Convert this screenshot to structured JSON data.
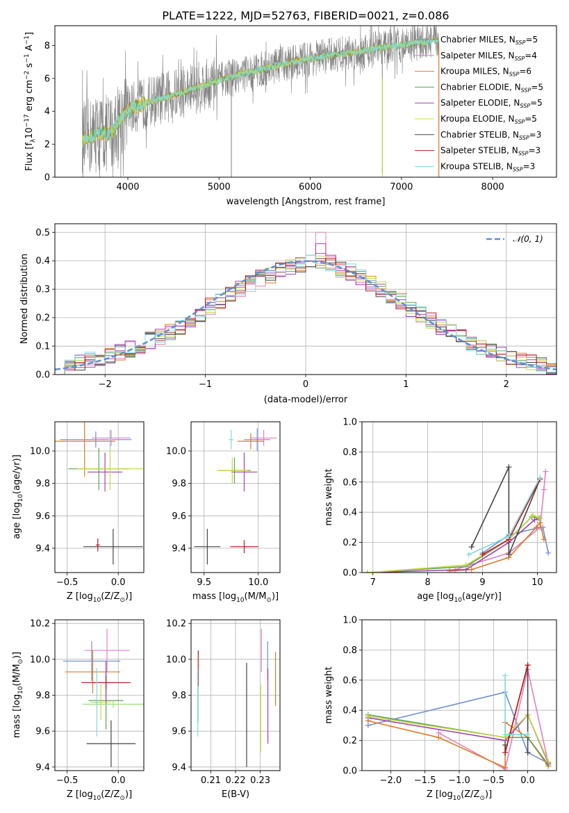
{
  "title": "PLATE=1222, MJD=52763, FIBERID=0021, z=0.086",
  "colors": {
    "Chabrier MILES": "#6a8fd8",
    "Salpeter MILES": "#e37fbe",
    "Kroupa MILES": "#e07b20",
    "Chabrier ELODIE": "#5aa15a",
    "Salpeter ELODIE": "#a040b0",
    "Kroupa ELODIE": "#c8d840",
    "Chabrier STELIB": "#444444",
    "Salpeter STELIB": "#c01818",
    "Kroupa STELIB": "#80d8e0",
    "extra_light_green": "#90e070",
    "normal_curve": "#5b8fd8",
    "data_gray": "#808080"
  },
  "chart_data": [
    {
      "id": "spectrum",
      "type": "line",
      "xlabel": "wavelength [Angstrom, rest frame]",
      "ylabel_parts": [
        "Flux [f",
        "λ",
        "10",
        "−17",
        " erg cm",
        "−2",
        " s",
        "−1",
        " A",
        "−1",
        "]"
      ],
      "xlim": [
        3200,
        8700
      ],
      "ylim": [
        0,
        9.2
      ],
      "xticks": [
        4000,
        5000,
        6000,
        7000,
        8000
      ],
      "yticks": [
        0,
        2,
        4,
        6,
        8
      ],
      "legend_placement": "top-right",
      "legend": [
        {
          "name": "Chabrier MILES",
          "sub": "SSP",
          "n": "5",
          "color": "#6a8fd8"
        },
        {
          "name": "Salpeter MILES",
          "sub": "SSP",
          "n": "4",
          "color": "#e37fbe"
        },
        {
          "name": "Kroupa MILES",
          "sub": "SSP",
          "n": "6",
          "color": "#e07b20"
        },
        {
          "name": "Chabrier ELODIE",
          "sub": "SSP",
          "n": "5",
          "color": "#5aa15a"
        },
        {
          "name": "Salpeter ELODIE",
          "sub": "SSP",
          "n": "5",
          "color": "#a040b0"
        },
        {
          "name": "Kroupa ELODIE",
          "sub": "SSP",
          "n": "5",
          "color": "#c8d840"
        },
        {
          "name": "Chabrier STELIB",
          "sub": "SSP",
          "n": "3",
          "color": "#444444"
        },
        {
          "name": "Salpeter STELIB",
          "sub": "SSP",
          "n": "3",
          "color": "#c01818"
        },
        {
          "name": "Kroupa STELIB",
          "sub": "SSP",
          "n": "3",
          "color": "#80d8e0"
        }
      ],
      "model_points": [
        [
          3500,
          2.2
        ],
        [
          3600,
          2.5
        ],
        [
          3700,
          2.7
        ],
        [
          3800,
          2.6
        ],
        [
          3900,
          3.4
        ],
        [
          4000,
          4.1
        ],
        [
          4200,
          4.5
        ],
        [
          4500,
          5.0
        ],
        [
          4800,
          5.5
        ],
        [
          5000,
          5.9
        ],
        [
          5200,
          6.2
        ],
        [
          5500,
          6.6
        ],
        [
          5800,
          7.0
        ],
        [
          6000,
          7.2
        ],
        [
          6200,
          7.4
        ],
        [
          6500,
          7.6
        ],
        [
          6800,
          7.9
        ],
        [
          7000,
          8.0
        ],
        [
          7200,
          8.2
        ],
        [
          7400,
          8.3
        ]
      ],
      "data_wave_range": [
        3500,
        7410
      ]
    },
    {
      "id": "residual-hist",
      "type": "histogram",
      "xlabel": "(data-model)/error",
      "ylabel": "Normed distribution",
      "xlim": [
        -2.5,
        2.5
      ],
      "ylim": [
        0,
        0.53
      ],
      "xticks": [
        -2,
        -1,
        0,
        1,
        2
      ],
      "xtick_labels": [
        "−2",
        "−1",
        "0",
        "1",
        "2"
      ],
      "yticks": [
        0.0,
        0.1,
        0.2,
        0.3,
        0.4,
        0.5
      ],
      "ytick_labels": [
        "0.0",
        "0.1",
        "0.2",
        "0.3",
        "0.4",
        "0.5"
      ],
      "bin_width": 0.1,
      "bin_start": -2.5,
      "base_values": [
        0.02,
        0.03,
        0.04,
        0.05,
        0.06,
        0.07,
        0.08,
        0.09,
        0.1,
        0.12,
        0.13,
        0.15,
        0.17,
        0.19,
        0.21,
        0.24,
        0.26,
        0.28,
        0.3,
        0.32,
        0.34,
        0.35,
        0.37,
        0.38,
        0.39,
        0.4,
        0.4,
        0.39,
        0.37,
        0.36,
        0.34,
        0.32,
        0.3,
        0.28,
        0.26,
        0.23,
        0.21,
        0.19,
        0.17,
        0.15,
        0.13,
        0.11,
        0.09,
        0.08,
        0.07,
        0.06,
        0.05,
        0.04,
        0.03,
        0.02
      ],
      "peak_values": [
        {
          "x": 0.1,
          "y": 0.5
        },
        {
          "x": 0.1,
          "y": 0.46
        }
      ],
      "normal_curve": {
        "name": "𝒩(0, 1)",
        "mean": 0,
        "sigma": 1,
        "scale": 0.3989
      },
      "legend_placement": "top-right"
    },
    {
      "id": "age-vs-Z",
      "type": "scatter",
      "xlabel_parts": [
        "Z [log",
        "10",
        "(Z/Z",
        "⊙",
        ")]"
      ],
      "ylabel_parts": [
        "age  [log",
        "10",
        "(age/yr)]"
      ],
      "xlim": [
        -0.62,
        0.25
      ],
      "ylim": [
        9.25,
        10.18
      ],
      "xticks": [
        -0.5,
        0.0
      ],
      "xtick_labels": [
        "−0.5",
        "0.0"
      ],
      "yticks": [
        9.4,
        9.6,
        9.8,
        10.0
      ],
      "yticks_labels": [
        "9.4",
        "9.6",
        "9.8",
        "10.0"
      ],
      "points": [
        {
          "series": "Chabrier MILES",
          "x": -0.22,
          "y": 10.07,
          "xerr": 0.35,
          "yerr": 0.05
        },
        {
          "series": "Salpeter MILES",
          "x": -0.07,
          "y": 10.08,
          "xerr": 0.19,
          "yerr": 0.05
        },
        {
          "series": "Kroupa MILES",
          "x": -0.33,
          "y": 10.06,
          "xerr": 0.3,
          "yerr": 0.22
        },
        {
          "series": "Chabrier ELODIE",
          "x": -0.19,
          "y": 9.89,
          "xerr": 0.3,
          "yerr": 0.13
        },
        {
          "series": "Salpeter ELODIE",
          "x": -0.13,
          "y": 9.87,
          "xerr": 0.17,
          "yerr": 0.12
        },
        {
          "series": "Kroupa ELODIE",
          "x": -0.08,
          "y": 9.89,
          "xerr": 0.32,
          "yerr": 0.13
        },
        {
          "series": "Chabrier STELIB",
          "x": -0.05,
          "y": 9.41,
          "xerr": 0.29,
          "yerr": 0.11
        },
        {
          "series": "Salpeter STELIB",
          "x": -0.2,
          "y": 9.42,
          "xerr": 0.02,
          "yerr": 0.04
        },
        {
          "series": "Kroupa STELIB",
          "x": -0.08,
          "y": 10.07,
          "xerr": 0.02,
          "yerr": 0.06
        }
      ]
    },
    {
      "id": "age-vs-mass",
      "type": "scatter",
      "xlabel_parts": [
        "mass [log",
        "10",
        "(M/M",
        "⊙",
        ")]"
      ],
      "xlim": [
        9.38,
        10.2
      ],
      "ylim": [
        9.25,
        10.18
      ],
      "xticks": [
        9.5,
        10.0
      ],
      "xtick_labels": [
        "9.5",
        "10.0"
      ],
      "yticks": [
        9.4,
        9.6,
        9.8,
        10.0
      ],
      "yticks_labels": [
        "9.4",
        "9.6",
        "9.8",
        "10.0"
      ],
      "points": [
        {
          "series": "Chabrier MILES",
          "x": 9.99,
          "y": 10.07,
          "xerr": 0.12,
          "yerr": 0.07
        },
        {
          "series": "Salpeter MILES",
          "x": 10.05,
          "y": 10.08,
          "xerr": 0.12,
          "yerr": 0.05
        },
        {
          "series": "Kroupa MILES",
          "x": 9.93,
          "y": 10.06,
          "xerr": 0.12,
          "yerr": 0.05
        },
        {
          "series": "Chabrier ELODIE",
          "x": 9.78,
          "y": 9.88,
          "xerr": 0.15,
          "yerr": 0.08
        },
        {
          "series": "Salpeter ELODIE",
          "x": 9.87,
          "y": 9.87,
          "xerr": 0.12,
          "yerr": 0.12
        },
        {
          "series": "Kroupa ELODIE",
          "x": 9.76,
          "y": 9.88,
          "xerr": 0.14,
          "yerr": 0.08
        },
        {
          "series": "Chabrier STELIB",
          "x": 9.53,
          "y": 9.41,
          "xerr": 0.12,
          "yerr": 0.11
        },
        {
          "series": "Salpeter STELIB",
          "x": 9.87,
          "y": 9.41,
          "xerr": 0.13,
          "yerr": 0.04
        },
        {
          "series": "Kroupa STELIB",
          "x": 9.75,
          "y": 10.07,
          "xerr": 0.02,
          "yerr": 0.06
        }
      ]
    },
    {
      "id": "massweight-vs-age",
      "type": "line",
      "xlabel_parts": [
        "age  [log",
        "10",
        "(age/yr)]"
      ],
      "ylabel": "mass weight",
      "xlim": [
        6.8,
        10.35
      ],
      "ylim": [
        0,
        1.0
      ],
      "xticks": [
        7,
        8,
        9,
        10
      ],
      "yticks": [
        0.0,
        0.2,
        0.4,
        0.6,
        0.8,
        1.0
      ],
      "ytick_labels": [
        "0.0",
        "0.2",
        "0.4",
        "0.6",
        "0.8",
        "1.0"
      ],
      "series": [
        {
          "name": "Chabrier MILES",
          "x": [
            9.0,
            9.48,
            10.05,
            10.1,
            10.2
          ],
          "y": [
            0.13,
            0.25,
            0.3,
            0.3,
            0.13
          ]
        },
        {
          "name": "Salpeter MILES",
          "x": [
            8.5,
            9.48,
            10.05,
            10.12,
            10.15
          ],
          "y": [
            0.02,
            0.13,
            0.3,
            0.55,
            0.67
          ]
        },
        {
          "name": "Kroupa MILES",
          "x": [
            8.4,
            8.8,
            9.48,
            9.98,
            10.05,
            10.12
          ],
          "y": [
            0.01,
            0.02,
            0.1,
            0.3,
            0.33,
            0.22
          ]
        },
        {
          "name": "Chabrier ELODIE",
          "x": [
            6.9,
            8.7,
            9.48,
            9.9,
            10.03
          ],
          "y": [
            0.0,
            0.04,
            0.22,
            0.37,
            0.36
          ]
        },
        {
          "name": "Salpeter ELODIE",
          "x": [
            6.9,
            8.7,
            9.48,
            9.95,
            10.05
          ],
          "y": [
            0.0,
            0.02,
            0.2,
            0.35,
            0.36
          ]
        },
        {
          "name": "Kroupa ELODIE",
          "x": [
            6.9,
            8.7,
            9.48,
            9.92,
            10.05
          ],
          "y": [
            0.0,
            0.05,
            0.22,
            0.38,
            0.36
          ]
        },
        {
          "name": "Chabrier STELIB",
          "x": [
            8.8,
            9.48,
            9.48,
            10.05
          ],
          "y": [
            0.17,
            0.7,
            0.12,
            0.62
          ]
        },
        {
          "name": "Salpeter STELIB",
          "x": [
            9.0,
            9.48,
            10.05
          ],
          "y": [
            0.12,
            0.22,
            0.62
          ]
        },
        {
          "name": "Kroupa STELIB",
          "x": [
            8.75,
            9.48,
            10.05
          ],
          "y": [
            0.12,
            0.24,
            0.63
          ]
        }
      ]
    },
    {
      "id": "mass-vs-Z",
      "type": "scatter",
      "xlabel_parts": [
        "Z [log",
        "10",
        "(Z/Z",
        "⊙",
        ")]"
      ],
      "ylabel_parts": [
        "mass [log",
        "10",
        "(M/M",
        "⊙",
        ")]"
      ],
      "xlim": [
        -0.62,
        0.25
      ],
      "ylim": [
        9.38,
        10.22
      ],
      "xticks": [
        -0.5,
        0.0
      ],
      "xtick_labels": [
        "−0.5",
        "0.0"
      ],
      "yticks": [
        9.4,
        9.6,
        9.8,
        10.0,
        10.2
      ],
      "yticks_labels": [
        "9.4",
        "9.6",
        "9.8",
        "10.0",
        "10.2"
      ],
      "points": [
        {
          "series": "Chabrier MILES",
          "x": -0.26,
          "y": 9.99,
          "xerr": 0.28,
          "yerr": 0.11
        },
        {
          "series": "Salpeter MILES",
          "x": -0.11,
          "y": 10.05,
          "xerr": 0.22,
          "yerr": 0.12
        },
        {
          "series": "Kroupa MILES",
          "x": -0.25,
          "y": 9.93,
          "xerr": 0.27,
          "yerr": 0.12
        },
        {
          "series": "Chabrier ELODIE",
          "x": -0.12,
          "y": 9.77,
          "xerr": 0.17,
          "yerr": 0.16
        },
        {
          "series": "Salpeter ELODIE",
          "x": -0.12,
          "y": 9.87,
          "xerr": 0.19,
          "yerr": 0.12
        },
        {
          "series": "Kroupa ELODIE",
          "x": -0.17,
          "y": 9.76,
          "xerr": 0.1,
          "yerr": 0.1
        },
        {
          "series": "Chabrier STELIB",
          "x": -0.07,
          "y": 9.53,
          "xerr": 0.24,
          "yerr": 0.13
        },
        {
          "series": "Salpeter STELIB",
          "x": -0.12,
          "y": 9.87,
          "xerr": 0.24,
          "yerr": 0.04
        },
        {
          "series": "Kroupa STELIB",
          "x": -0.21,
          "y": 9.76,
          "xerr": 0.02,
          "yerr": 0.19
        },
        {
          "series": "extra_light_green",
          "x": -0.05,
          "y": 9.75,
          "xerr": 0.3,
          "yerr": 0.02
        }
      ]
    },
    {
      "id": "mass-vs-ebv",
      "type": "scatter",
      "xlabel": "E(B-V)",
      "xlim": [
        0.202,
        0.238
      ],
      "ylim": [
        9.38,
        10.22
      ],
      "xticks": [
        0.21,
        0.22,
        0.23
      ],
      "xtick_labels": [
        "0.21",
        "0.22",
        "0.23"
      ],
      "yticks": [
        9.4,
        9.6,
        9.8,
        10.0,
        10.2
      ],
      "yticks_labels": [
        "9.4",
        "9.6",
        "9.8",
        "10.0",
        "10.2"
      ],
      "points": [
        {
          "series": "Chabrier MILES",
          "x": 0.233,
          "y": 9.99,
          "xerr": 0.0,
          "yerr": 0.11
        },
        {
          "series": "Salpeter MILES",
          "x": 0.2305,
          "y": 10.05,
          "xerr": 0.0,
          "yerr": 0.12
        },
        {
          "series": "Kroupa MILES",
          "x": 0.2362,
          "y": 9.89,
          "xerr": 0.0,
          "yerr": 0.15
        },
        {
          "series": "Chabrier ELODIE",
          "x": 0.2048,
          "y": 9.77,
          "xerr": 0.0,
          "yerr": 0.12
        },
        {
          "series": "Salpeter ELODIE",
          "x": 0.2331,
          "y": 9.74,
          "xerr": 0.0,
          "yerr": 0.21
        },
        {
          "series": "Kroupa ELODIE",
          "x": 0.2302,
          "y": 9.67,
          "xerr": 0.0,
          "yerr": 0.19
        },
        {
          "series": "Chabrier STELIB",
          "x": 0.2245,
          "y": 9.69,
          "xerr": 0.0,
          "yerr": 0.29
        },
        {
          "series": "Salpeter STELIB",
          "x": 0.2049,
          "y": 9.95,
          "xerr": 0.0,
          "yerr": 0.1
        },
        {
          "series": "Kroupa STELIB",
          "x": 0.2047,
          "y": 9.76,
          "xerr": 0.0,
          "yerr": 0.19
        }
      ]
    },
    {
      "id": "massweight-vs-Z",
      "type": "line",
      "xlabel_parts": [
        "Z [log",
        "10",
        "(Z/Z",
        "⊙",
        ")]"
      ],
      "ylabel": "mass weight",
      "xlim": [
        -2.42,
        0.42
      ],
      "ylim": [
        0,
        1.0
      ],
      "xticks": [
        -2.0,
        -1.5,
        -1.0,
        -0.5,
        0.0
      ],
      "xtick_labels": [
        "−2.0",
        "−1.5",
        "−1.0",
        "−0.5",
        "0.0"
      ],
      "yticks": [
        0.0,
        0.2,
        0.4,
        0.6,
        0.8,
        1.0
      ],
      "ytick_labels": [
        "0.0",
        "0.2",
        "0.4",
        "0.6",
        "0.8",
        "1.0"
      ],
      "series": [
        {
          "name": "Chabrier MILES",
          "x": [
            -2.33,
            -0.33,
            0.0,
            0.3
          ],
          "y": [
            0.3,
            0.52,
            0.12,
            0.05
          ]
        },
        {
          "name": "Salpeter MILES",
          "x": [
            -1.3,
            -0.33,
            0.0,
            0.3
          ],
          "y": [
            0.25,
            0.01,
            0.67,
            0.05
          ]
        },
        {
          "name": "Kroupa MILES",
          "x": [
            -2.33,
            -1.3,
            -0.33,
            -0.33,
            0.0,
            0.3
          ],
          "y": [
            0.33,
            0.22,
            0.02,
            0.32,
            0.22,
            0.03
          ]
        },
        {
          "name": "Chabrier ELODIE",
          "x": [
            -2.33,
            -0.33,
            0.0,
            0.3
          ],
          "y": [
            0.37,
            0.22,
            0.22,
            0.04
          ]
        },
        {
          "name": "Salpeter ELODIE",
          "x": [
            -2.33,
            -0.33,
            0.0,
            0.3
          ],
          "y": [
            0.35,
            0.2,
            0.37,
            0.05
          ]
        },
        {
          "name": "Kroupa ELODIE",
          "x": [
            -2.33,
            -0.33,
            0.0,
            0.3
          ],
          "y": [
            0.36,
            0.22,
            0.37,
            0.06
          ]
        },
        {
          "name": "Chabrier STELIB",
          "x": [
            -0.33,
            -0.33,
            0.0,
            0.0
          ],
          "y": [
            0.17,
            0.12,
            0.7,
            0.12
          ]
        },
        {
          "name": "Salpeter STELIB",
          "x": [
            -0.33,
            0.0
          ],
          "y": [
            0.12,
            0.7
          ]
        },
        {
          "name": "Kroupa STELIB",
          "x": [
            -0.33,
            -0.33,
            0.0
          ],
          "y": [
            0.63,
            0.24,
            0.24
          ]
        }
      ]
    }
  ]
}
